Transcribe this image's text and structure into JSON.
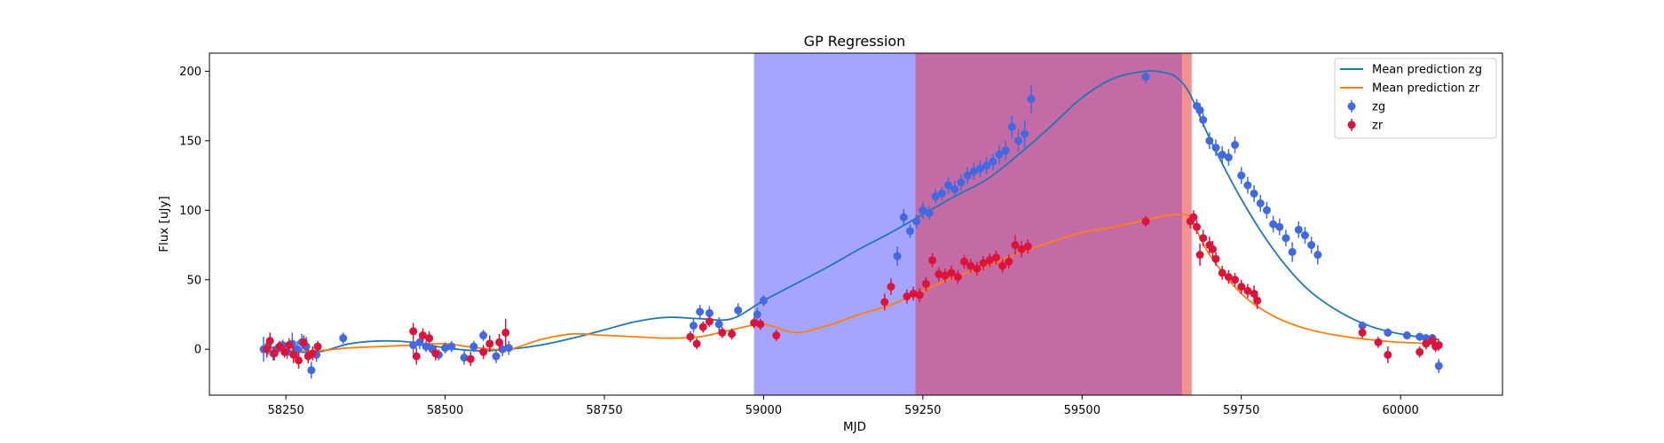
{
  "chart_data": {
    "type": "scatter",
    "title": "GP Regression",
    "xlabel": "MJD",
    "ylabel": "Flux [uJy]",
    "xlim": [
      58130,
      60160
    ],
    "ylim": [
      -33,
      213
    ],
    "xticks": [
      58250,
      58500,
      58750,
      59000,
      59250,
      59500,
      59750,
      60000
    ],
    "yticks": [
      0,
      50,
      100,
      150,
      200
    ],
    "grid": false,
    "legend_position": "top-right",
    "shaded_regions": [
      {
        "x0": 58985,
        "x1": 59238,
        "color": "#a5a5ff"
      },
      {
        "x0": 59238,
        "x1": 59657,
        "color": "#c46aa5"
      },
      {
        "x0": 59657,
        "x1": 59672,
        "color": "#f59090"
      }
    ],
    "lines": [
      {
        "name": "Mean prediction zg",
        "color": "#1f77b4",
        "x": [
          58220,
          58250,
          58300,
          58350,
          58400,
          58450,
          58500,
          58550,
          58600,
          58650,
          58700,
          58750,
          58800,
          58850,
          58900,
          58950,
          59000,
          59050,
          59100,
          59150,
          59200,
          59250,
          59300,
          59350,
          59400,
          59450,
          59500,
          59550,
          59600,
          59630,
          59650,
          59670,
          59700,
          59750,
          59800,
          59850,
          59900,
          59950,
          60000,
          60060
        ],
        "y": [
          2,
          -1,
          -2,
          4,
          6,
          5,
          1,
          -1,
          0,
          3,
          8,
          14,
          20,
          23,
          22,
          22,
          35,
          47,
          59,
          72,
          84,
          97,
          110,
          122,
          140,
          160,
          181,
          195,
          200,
          199,
          195,
          183,
          152,
          108,
          72,
          45,
          28,
          17,
          11,
          7
        ]
      },
      {
        "name": "Mean prediction zr",
        "color": "#ff7f0e",
        "x": [
          58220,
          58250,
          58300,
          58350,
          58400,
          58450,
          58500,
          58550,
          58600,
          58650,
          58700,
          58750,
          58800,
          58850,
          58900,
          58950,
          59000,
          59050,
          59100,
          59150,
          59200,
          59250,
          59300,
          59350,
          59400,
          59450,
          59500,
          59550,
          59600,
          59630,
          59650,
          59670,
          59700,
          59750,
          59800,
          59850,
          59900,
          59950,
          60000,
          60060
        ],
        "y": [
          1,
          -1,
          -1,
          1,
          2,
          3,
          4,
          1,
          0,
          7,
          11,
          10,
          9,
          8,
          9,
          14,
          18,
          12,
          17,
          25,
          32,
          42,
          52,
          60,
          69,
          77,
          84,
          88,
          93,
          96,
          97,
          94,
          68,
          40,
          24,
          15,
          10,
          7,
          5,
          4
        ]
      }
    ],
    "series": [
      {
        "name": "zg",
        "color": "#4169e1",
        "x": [
          58215,
          58222,
          58230,
          58238,
          58245,
          58252,
          58260,
          58268,
          58275,
          58282,
          58290,
          58298,
          58340,
          58450,
          58460,
          58470,
          58480,
          58490,
          58500,
          58510,
          58530,
          58545,
          58560,
          58570,
          58580,
          58590,
          58600,
          58890,
          58900,
          58915,
          58930,
          58960,
          58990,
          59000,
          59210,
          59220,
          59230,
          59240,
          59250,
          59260,
          59270,
          59280,
          59290,
          59300,
          59310,
          59320,
          59330,
          59340,
          59350,
          59360,
          59370,
          59380,
          59390,
          59400,
          59410,
          59420,
          59600,
          59680,
          59685,
          59690,
          59700,
          59710,
          59720,
          59730,
          59740,
          59750,
          59760,
          59770,
          59780,
          59790,
          59800,
          59810,
          59820,
          59830,
          59840,
          59850,
          59860,
          59870,
          59940,
          59980,
          60010,
          60030,
          60040,
          60050,
          60060
        ],
        "y": [
          0,
          2,
          -3,
          1,
          3,
          -2,
          4,
          0,
          5,
          2,
          -15,
          -4,
          8,
          3,
          5,
          2,
          0,
          -4,
          1,
          2,
          -6,
          2,
          10,
          4,
          -5,
          0,
          1,
          17,
          27,
          26,
          18,
          28,
          25,
          35,
          67,
          95,
          85,
          92,
          100,
          98,
          110,
          112,
          118,
          115,
          120,
          125,
          128,
          130,
          132,
          135,
          140,
          143,
          160,
          150,
          155,
          180,
          196,
          175,
          172,
          165,
          150,
          145,
          140,
          138,
          147,
          125,
          118,
          112,
          105,
          100,
          90,
          88,
          80,
          70,
          86,
          82,
          75,
          68,
          17,
          12,
          10,
          9,
          8,
          8,
          -12
        ],
        "err": [
          9,
          6,
          5,
          4,
          4,
          5,
          8,
          6,
          6,
          7,
          6,
          5,
          4,
          6,
          5,
          4,
          4,
          4,
          4,
          4,
          5,
          4,
          4,
          4,
          5,
          5,
          5,
          5,
          5,
          5,
          5,
          5,
          5,
          4,
          7,
          6,
          5,
          5,
          6,
          5,
          5,
          5,
          6,
          6,
          6,
          6,
          6,
          6,
          6,
          6,
          7,
          7,
          8,
          8,
          10,
          10,
          5,
          5,
          5,
          5,
          6,
          6,
          6,
          6,
          6,
          6,
          6,
          6,
          6,
          6,
          6,
          6,
          6,
          7,
          6,
          6,
          6,
          7,
          3,
          3,
          3,
          3,
          3,
          3,
          5
        ]
      },
      {
        "name": "zr",
        "color": "#dc143c",
        "x": [
          58220,
          58225,
          58232,
          58240,
          58248,
          58255,
          58262,
          58270,
          58278,
          58285,
          58292,
          58300,
          58450,
          58455,
          58465,
          58475,
          58485,
          58540,
          58560,
          58570,
          58585,
          58595,
          58885,
          58895,
          58905,
          58915,
          58935,
          58950,
          58985,
          58995,
          59020,
          59190,
          59200,
          59225,
          59235,
          59245,
          59255,
          59265,
          59275,
          59285,
          59295,
          59305,
          59315,
          59325,
          59335,
          59345,
          59355,
          59365,
          59375,
          59385,
          59395,
          59405,
          59415,
          59600,
          59670,
          59675,
          59680,
          59685,
          59690,
          59700,
          59705,
          59710,
          59720,
          59730,
          59740,
          59750,
          59760,
          59770,
          59775,
          59940,
          59965,
          59980,
          60030,
          60040,
          60050,
          60055,
          60060
        ],
        "y": [
          0,
          6,
          -3,
          2,
          -2,
          3,
          -4,
          -8,
          5,
          -5,
          -3,
          2,
          13,
          -5,
          10,
          8,
          -3,
          -7,
          -2,
          4,
          5,
          12,
          9,
          4,
          16,
          20,
          12,
          11,
          19,
          18,
          10,
          34,
          45,
          38,
          40,
          39,
          47,
          64,
          54,
          53,
          55,
          52,
          63,
          60,
          58,
          62,
          64,
          66,
          60,
          63,
          75,
          72,
          74,
          92,
          92,
          95,
          88,
          68,
          80,
          75,
          72,
          65,
          55,
          52,
          50,
          45,
          42,
          40,
          35,
          12,
          5,
          -4,
          -2,
          4,
          6,
          2,
          3
        ],
        "err": [
          6,
          6,
          5,
          4,
          4,
          5,
          6,
          6,
          5,
          5,
          5,
          4,
          6,
          6,
          5,
          5,
          5,
          5,
          5,
          6,
          6,
          10,
          4,
          4,
          4,
          4,
          4,
          4,
          4,
          4,
          4,
          6,
          6,
          5,
          5,
          5,
          5,
          5,
          5,
          5,
          5,
          5,
          5,
          5,
          5,
          5,
          5,
          5,
          5,
          5,
          7,
          6,
          5,
          4,
          5,
          5,
          5,
          8,
          6,
          6,
          6,
          5,
          5,
          5,
          5,
          5,
          5,
          6,
          6,
          4,
          4,
          6,
          4,
          4,
          4,
          4,
          4
        ]
      }
    ]
  }
}
